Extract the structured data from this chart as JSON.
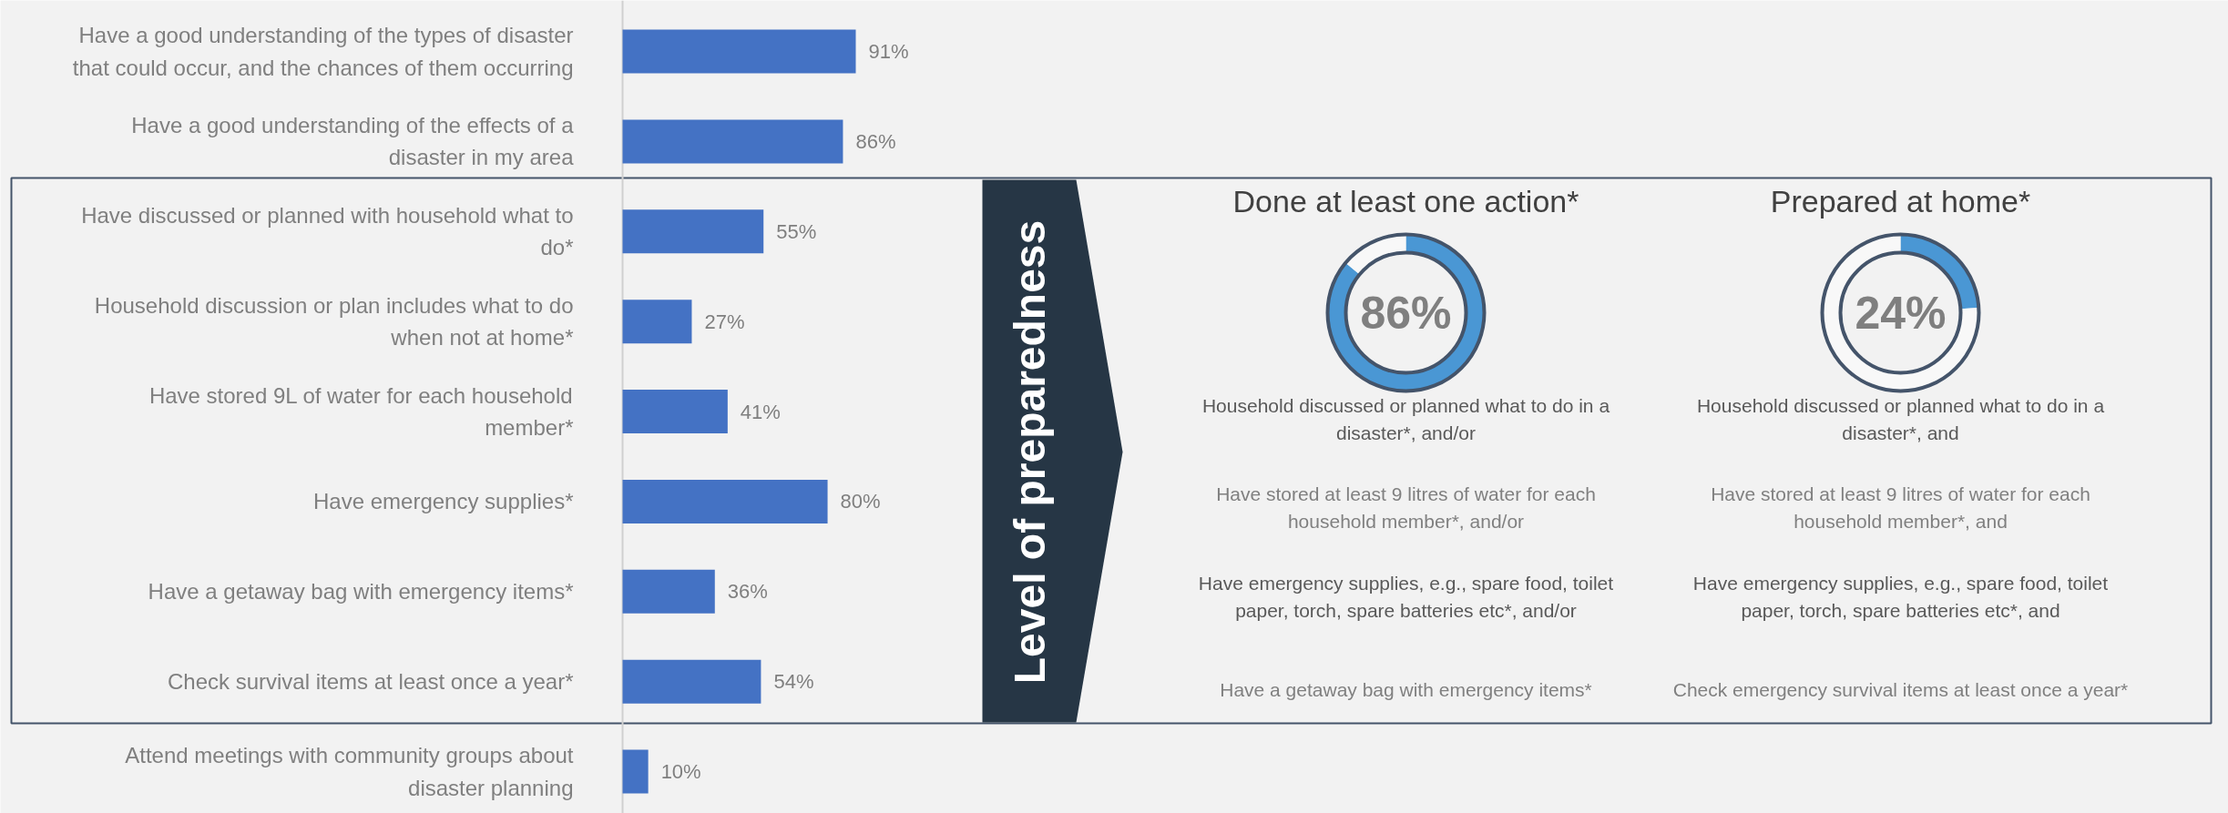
{
  "chart_data": [
    {
      "type": "bar",
      "orientation": "horizontal",
      "color": "#4472c4",
      "categories": [
        "Have a good understanding of the types of disaster\nthat could occur, and the chances of them occurring",
        "Have a good understanding of the effects of a\ndisaster in my area",
        "Have discussed or planned with household what to\ndo*",
        "Household discussion or plan includes what to do\nwhen not at home*",
        "Have stored 9L of water for each household\nmember*",
        "Have emergency supplies*",
        "Have a getaway bag with emergency items*",
        "Check survival items at least once a year*",
        "Attend meetings with community groups about\ndisaster planning"
      ],
      "values": [
        91,
        86,
        55,
        27,
        41,
        80,
        36,
        54,
        10
      ],
      "value_labels": [
        "91%",
        "86%",
        "55%",
        "27%",
        "41%",
        "80%",
        "36%",
        "54%",
        "10%"
      ]
    },
    {
      "type": "other",
      "title": "Level of preparedness"
    },
    {
      "type": "donut",
      "title": "Done at least one action*",
      "categories": [
        null,
        null
      ],
      "values": [
        86,
        14
      ],
      "colors": [
        "#4a97d4",
        "#f8f8f8"
      ],
      "value_labels": [
        "86%",
        null
      ],
      "annotations": [
        "Household discussed or planned what to do in a\ndisaster*, and/or",
        "Have stored at least 9 litres of water for each\nhousehold member*, and/or",
        "Have emergency supplies, e.g., spare food, toilet\npaper, torch, spare batteries etc*, and/or",
        "Have a getaway bag with emergency items*"
      ]
    },
    {
      "type": "donut",
      "title": "Prepared at home*",
      "categories": [
        null,
        null
      ],
      "values": [
        24,
        76
      ],
      "colors": [
        "#4a97d4",
        "#f8f8f8"
      ],
      "value_labels": [
        "24%",
        null
      ],
      "annotations": [
        "Household discussed or planned what to do in a\ndisaster*, and",
        "Have stored at least 9 litres of water for each\nhousehold member*, and",
        "Have emergency supplies, e.g., spare food, toilet\npaper, torch, spare batteries etc*, and",
        "Check emergency survival items at least once a year*"
      ]
    }
  ]
}
